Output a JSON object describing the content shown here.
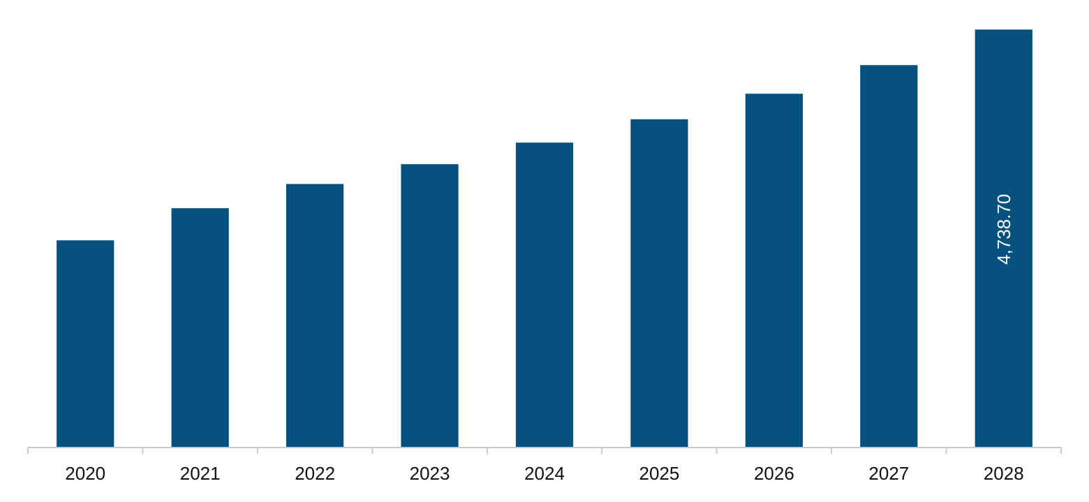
{
  "chart_data": {
    "type": "bar",
    "categories": [
      "2020",
      "2021",
      "2022",
      "2023",
      "2024",
      "2025",
      "2026",
      "2027",
      "2028"
    ],
    "series": [
      {
        "values": [
          2345,
          2710,
          2985,
          3210,
          3455,
          3720,
          4010,
          4335,
          4738.7
        ],
        "data_labels": [
          "",
          "",
          "",
          "",
          "",
          "",
          "",
          "",
          "4,738.70"
        ]
      }
    ],
    "ylim": [
      0,
      4900
    ],
    "title": "",
    "xlabel": "",
    "ylabel": "",
    "grid": false,
    "bar_color": "#06517e",
    "data_label_color": "#ffffff"
  }
}
